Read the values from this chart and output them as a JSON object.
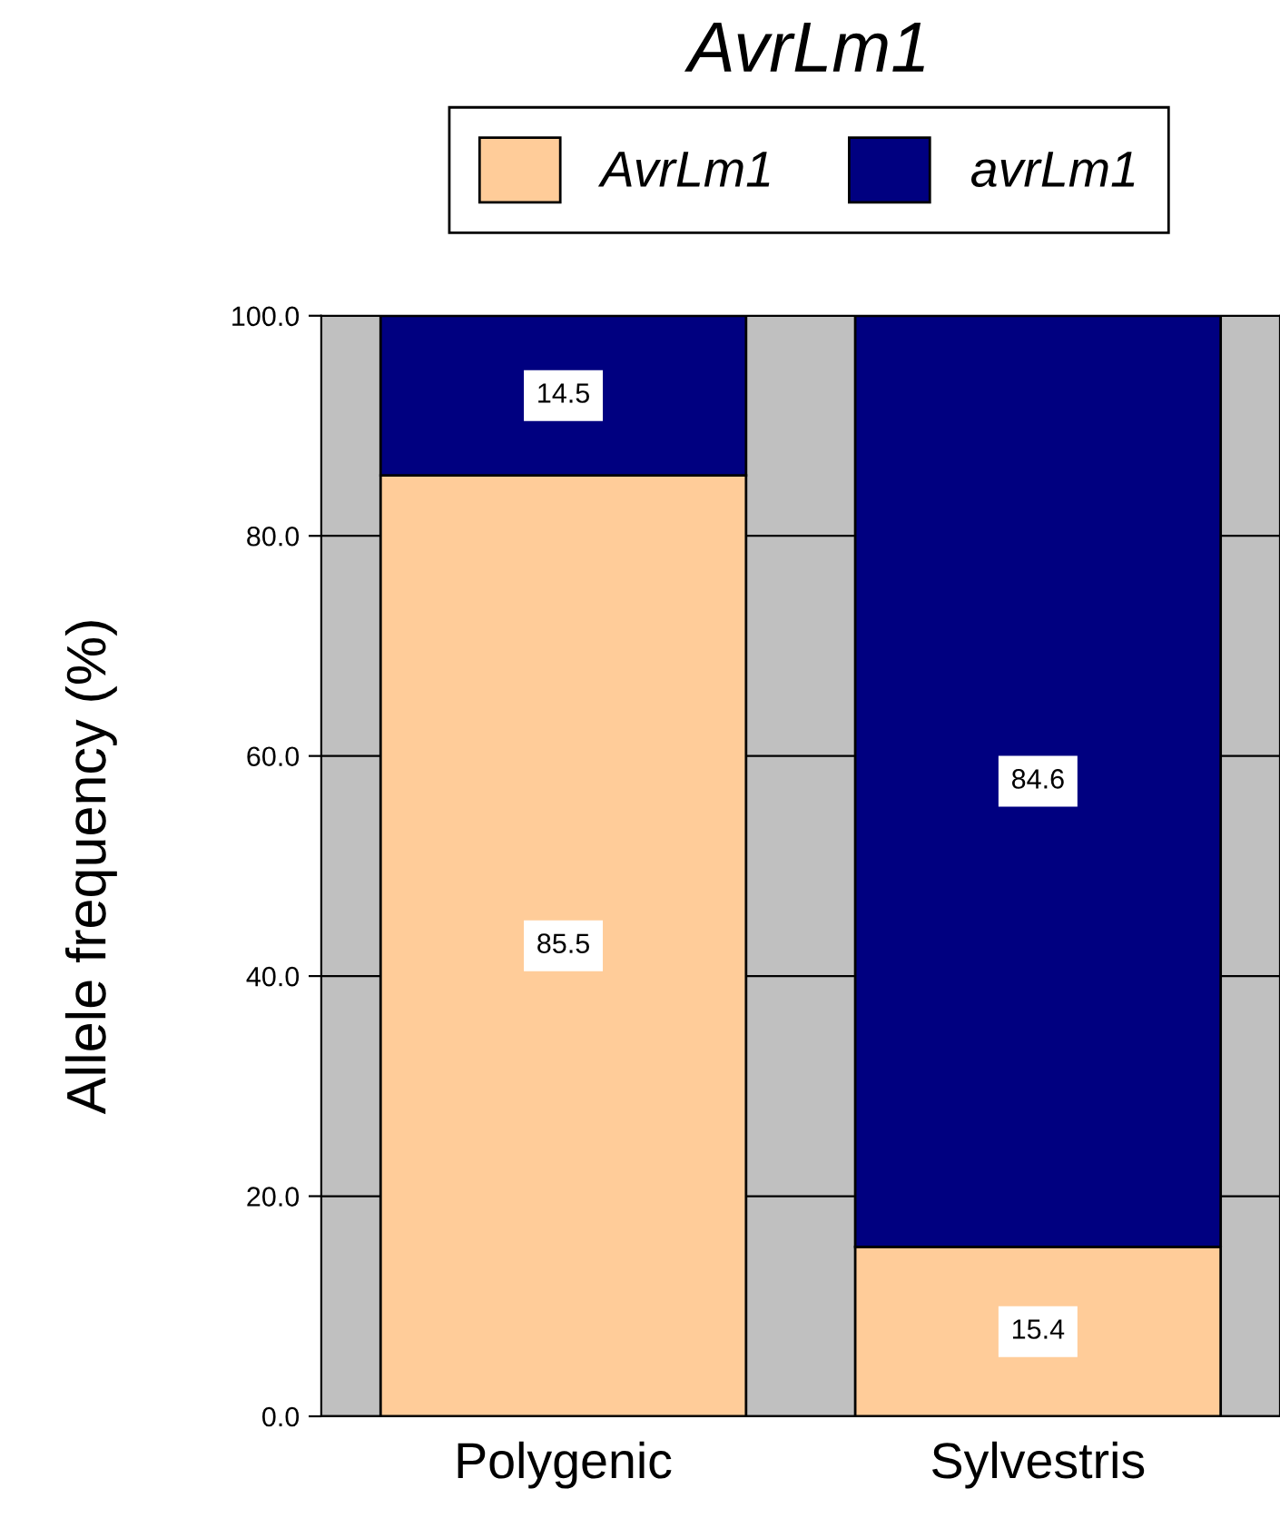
{
  "chart_data": {
    "type": "bar",
    "title": "AvrLm1",
    "ylabel": "Allele frequency (%)",
    "categories": [
      "Polygenic",
      "Sylvestris"
    ],
    "stacked": true,
    "series": [
      {
        "name": "AvrLm1",
        "color": "#ffcc99",
        "values": [
          85.5,
          15.4
        ]
      },
      {
        "name": "avrLm1",
        "color": "#000080",
        "values": [
          14.5,
          84.6
        ]
      }
    ],
    "ylim": [
      0,
      100
    ],
    "yticks": [
      {
        "value": 0,
        "label": "0.0"
      },
      {
        "value": 20,
        "label": "20.0"
      },
      {
        "value": 40,
        "label": "40.0"
      },
      {
        "value": 60,
        "label": "60.0"
      },
      {
        "value": 80,
        "label": "80.0"
      },
      {
        "value": 100,
        "label": "100.0"
      }
    ],
    "grid": "y",
    "legend": "top",
    "data_labels": true
  }
}
